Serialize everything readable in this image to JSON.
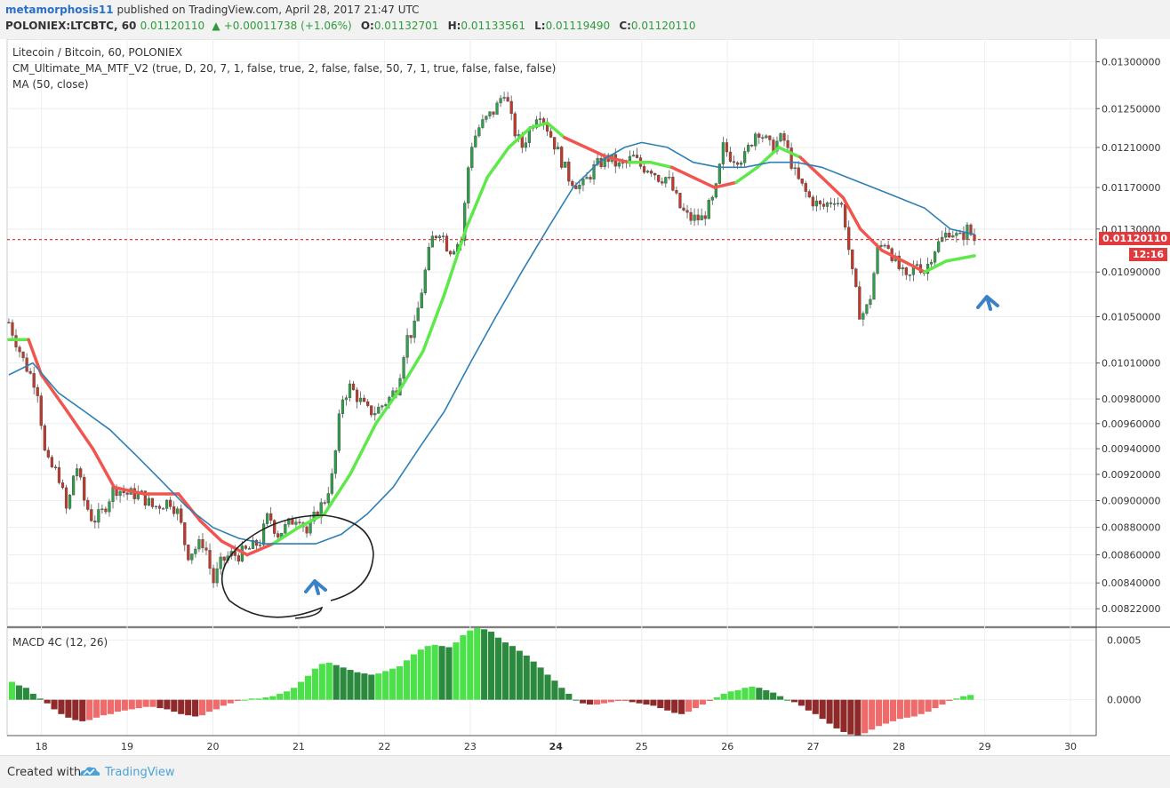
{
  "header": {
    "author": "metamorphosis11",
    "published": "published on TradingView.com, April 28, 2017 21:47 UTC",
    "symbol": "POLONIEX:LTCBTC, 60",
    "last": "0.01120110",
    "change": "+0.00011738 (+1.06%)",
    "o_label": "O:",
    "o": "0.01132701",
    "h_label": "H:",
    "h": "0.01133561",
    "l_label": "L:",
    "l": "0.01119490",
    "c_label": "C:",
    "c": "0.01120110"
  },
  "legend": {
    "title": "Litecoin / Bitcoin, 60, POLONIEX",
    "indicator1": "CM_Ultimate_MA_MTF_V2 (true, D, 20, 7, 1, false, true, 2, false, false, 50, 7, 1, true, false, false, false)",
    "indicator2": "MA (50, close)",
    "macd": "MACD 4C (12, 26)"
  },
  "price_tags": {
    "last_price": "0.01120110",
    "countdown": "12:16"
  },
  "footer": {
    "created_with": "Created with",
    "brand": "TradingView"
  },
  "colors": {
    "ma_up": "#5ee84a",
    "ma_down": "#f0554f",
    "ma50": "#2e7fb3",
    "candle_up": "#2f9e4a",
    "candle_down": "#c0392b",
    "last_line": "#e0393e",
    "annotation_arrow": "#3b82c4",
    "annotation_circle": "#222222"
  },
  "chart_data": [
    {
      "type": "candlestick",
      "title": "Litecoin / Bitcoin, 60, POLONIEX",
      "x_ticks": [
        "18",
        "19",
        "20",
        "21",
        "22",
        "23",
        "24",
        "25",
        "26",
        "27",
        "28",
        "29",
        "30"
      ],
      "x_range_days": [
        17.6,
        30.3
      ],
      "y_ticks": [
        "0.01300000",
        "0.01250000",
        "0.01210000",
        "0.01170000",
        "0.01130000",
        "0.01090000",
        "0.01050000",
        "0.01010000",
        "0.00980000",
        "0.00960000",
        "0.00940000",
        "0.00920000",
        "0.00900000",
        "0.00880000",
        "0.00860000",
        "0.00840000",
        "0.00822000"
      ],
      "y_scale": "log",
      "y_range": [
        0.0081,
        0.01325
      ],
      "last_price": 0.0112011,
      "price_points": [
        [
          17.62,
          0.01045
        ],
        [
          17.8,
          0.0101
        ],
        [
          17.95,
          0.0099
        ],
        [
          18.05,
          0.0093
        ],
        [
          18.2,
          0.0092
        ],
        [
          18.3,
          0.0089
        ],
        [
          18.4,
          0.0093
        ],
        [
          18.5,
          0.009
        ],
        [
          18.6,
          0.00885
        ],
        [
          18.7,
          0.0089
        ],
        [
          18.85,
          0.0091
        ],
        [
          19.0,
          0.00905
        ],
        [
          19.15,
          0.00905
        ],
        [
          19.3,
          0.00895
        ],
        [
          19.5,
          0.009
        ],
        [
          19.6,
          0.0089
        ],
        [
          19.7,
          0.0086
        ],
        [
          19.8,
          0.00865
        ],
        [
          19.9,
          0.0087
        ],
        [
          20.0,
          0.0084
        ],
        [
          20.1,
          0.00855
        ],
        [
          20.2,
          0.0086
        ],
        [
          20.3,
          0.0086
        ],
        [
          20.45,
          0.00865
        ],
        [
          20.55,
          0.0087
        ],
        [
          20.65,
          0.0089
        ],
        [
          20.75,
          0.00875
        ],
        [
          20.85,
          0.0088
        ],
        [
          21.0,
          0.0089
        ],
        [
          21.1,
          0.00875
        ],
        [
          21.2,
          0.0089
        ],
        [
          21.3,
          0.009
        ],
        [
          21.4,
          0.0092
        ],
        [
          21.5,
          0.0098
        ],
        [
          21.6,
          0.0099
        ],
        [
          21.7,
          0.0098
        ],
        [
          21.8,
          0.0097
        ],
        [
          21.9,
          0.0097
        ],
        [
          22.05,
          0.0098
        ],
        [
          22.15,
          0.0099
        ],
        [
          22.25,
          0.0103
        ],
        [
          22.35,
          0.0104
        ],
        [
          22.45,
          0.0108
        ],
        [
          22.55,
          0.0112
        ],
        [
          22.65,
          0.0113
        ],
        [
          22.75,
          0.0111
        ],
        [
          22.9,
          0.0112
        ],
        [
          23.0,
          0.0121
        ],
        [
          23.1,
          0.0123
        ],
        [
          23.2,
          0.0124
        ],
        [
          23.3,
          0.0125
        ],
        [
          23.4,
          0.0127
        ],
        [
          23.5,
          0.0123
        ],
        [
          23.6,
          0.0121
        ],
        [
          23.7,
          0.0123
        ],
        [
          23.8,
          0.0125
        ],
        [
          23.9,
          0.0123
        ],
        [
          24.05,
          0.012
        ],
        [
          24.15,
          0.0118
        ],
        [
          24.3,
          0.0117
        ],
        [
          24.45,
          0.0119
        ],
        [
          24.6,
          0.012
        ],
        [
          24.75,
          0.0119
        ],
        [
          24.9,
          0.012
        ],
        [
          25.0,
          0.0119
        ],
        [
          25.1,
          0.0119
        ],
        [
          25.2,
          0.0118
        ],
        [
          25.3,
          0.0118
        ],
        [
          25.45,
          0.0115
        ],
        [
          25.55,
          0.0114
        ],
        [
          25.7,
          0.0114
        ],
        [
          25.85,
          0.0116
        ],
        [
          25.95,
          0.0121
        ],
        [
          26.05,
          0.012
        ],
        [
          26.2,
          0.012
        ],
        [
          26.35,
          0.0123
        ],
        [
          26.5,
          0.0121
        ],
        [
          26.65,
          0.0122
        ],
        [
          26.8,
          0.0118
        ],
        [
          26.95,
          0.0116
        ],
        [
          27.1,
          0.0115
        ],
        [
          27.25,
          0.0116
        ],
        [
          27.35,
          0.0115
        ],
        [
          27.45,
          0.0109
        ],
        [
          27.55,
          0.0105
        ],
        [
          27.65,
          0.0106
        ],
        [
          27.75,
          0.0111
        ],
        [
          27.85,
          0.0112
        ],
        [
          27.95,
          0.011
        ],
        [
          28.1,
          0.0108
        ],
        [
          28.2,
          0.011
        ],
        [
          28.3,
          0.0109
        ],
        [
          28.4,
          0.0111
        ],
        [
          28.5,
          0.0112
        ],
        [
          28.6,
          0.0113
        ],
        [
          28.7,
          0.0112
        ],
        [
          28.8,
          0.0113
        ],
        [
          28.88,
          0.0112
        ]
      ],
      "series": [
        {
          "role": "ultimate_ma_mtf",
          "points": [
            [
              17.62,
              0.0103
            ],
            [
              17.85,
              0.0103
            ],
            [
              18.0,
              0.01
            ],
            [
              18.3,
              0.0097
            ],
            [
              18.6,
              0.0094
            ],
            [
              18.85,
              0.0091
            ],
            [
              19.2,
              0.00905
            ],
            [
              19.6,
              0.00905
            ],
            [
              19.85,
              0.00885
            ],
            [
              20.1,
              0.0087
            ],
            [
              20.4,
              0.0086
            ],
            [
              20.7,
              0.00868
            ],
            [
              21.0,
              0.0088
            ],
            [
              21.3,
              0.0089
            ],
            [
              21.6,
              0.0092
            ],
            [
              21.9,
              0.0096
            ],
            [
              22.2,
              0.0099
            ],
            [
              22.45,
              0.0102
            ],
            [
              22.7,
              0.0107
            ],
            [
              22.95,
              0.0113
            ],
            [
              23.2,
              0.0118
            ],
            [
              23.45,
              0.0121
            ],
            [
              23.7,
              0.0123
            ],
            [
              23.9,
              0.01235
            ],
            [
              24.1,
              0.0122
            ],
            [
              24.35,
              0.0121
            ],
            [
              24.6,
              0.012
            ],
            [
              24.85,
              0.01195
            ],
            [
              25.1,
              0.01195
            ],
            [
              25.35,
              0.0119
            ],
            [
              25.6,
              0.0118
            ],
            [
              25.85,
              0.0117
            ],
            [
              26.1,
              0.01175
            ],
            [
              26.35,
              0.0119
            ],
            [
              26.6,
              0.0121
            ],
            [
              26.85,
              0.012
            ],
            [
              27.1,
              0.0118
            ],
            [
              27.35,
              0.0116
            ],
            [
              27.55,
              0.0113
            ],
            [
              27.8,
              0.0111
            ],
            [
              28.05,
              0.011
            ],
            [
              28.3,
              0.0109
            ],
            [
              28.55,
              0.011
            ],
            [
              28.88,
              0.01105
            ]
          ],
          "direction": [
            "up",
            "down",
            "down",
            "down",
            "down",
            "down",
            "down",
            "down",
            "down",
            "down",
            "down",
            "up",
            "up",
            "up",
            "up",
            "up",
            "up",
            "up",
            "up",
            "up",
            "up",
            "up",
            "up",
            "up",
            "down",
            "down",
            "down",
            "up",
            "up",
            "down",
            "down",
            "down",
            "up",
            "up",
            "up",
            "down",
            "down",
            "down",
            "down",
            "down",
            "down",
            "up",
            "up",
            "up"
          ]
        },
        {
          "name": "MA (50, close)",
          "points": [
            [
              17.62,
              0.01
            ],
            [
              17.9,
              0.0101
            ],
            [
              18.2,
              0.00985
            ],
            [
              18.5,
              0.0097
            ],
            [
              18.8,
              0.00955
            ],
            [
              19.1,
              0.00935
            ],
            [
              19.4,
              0.00915
            ],
            [
              19.7,
              0.00895
            ],
            [
              20.0,
              0.0088
            ],
            [
              20.3,
              0.00872
            ],
            [
              20.6,
              0.00868
            ],
            [
              20.9,
              0.00868
            ],
            [
              21.2,
              0.00868
            ],
            [
              21.5,
              0.00875
            ],
            [
              21.8,
              0.0089
            ],
            [
              22.1,
              0.0091
            ],
            [
              22.4,
              0.0094
            ],
            [
              22.7,
              0.0097
            ],
            [
              23.0,
              0.0101
            ],
            [
              23.3,
              0.0105
            ],
            [
              23.6,
              0.0109
            ],
            [
              23.9,
              0.0113
            ],
            [
              24.2,
              0.0117
            ],
            [
              24.5,
              0.01195
            ],
            [
              24.8,
              0.0121
            ],
            [
              25.0,
              0.01215
            ],
            [
              25.3,
              0.0121
            ],
            [
              25.6,
              0.01195
            ],
            [
              25.9,
              0.0119
            ],
            [
              26.2,
              0.0119
            ],
            [
              26.5,
              0.01195
            ],
            [
              26.8,
              0.01195
            ],
            [
              27.1,
              0.0119
            ],
            [
              27.4,
              0.0118
            ],
            [
              27.7,
              0.0117
            ],
            [
              28.0,
              0.0116
            ],
            [
              28.3,
              0.0115
            ],
            [
              28.6,
              0.0113
            ],
            [
              28.88,
              0.01125
            ]
          ]
        }
      ]
    },
    {
      "type": "bar",
      "title": "MACD 4C (12, 26)",
      "y_ticks": [
        "0.0005",
        "0.0000"
      ],
      "y_range": [
        -0.0003,
        0.0006
      ],
      "values": [
        0.00015,
        0.00012,
        0.0001,
        5e-05,
        1e-05,
        -3e-05,
        -8e-05,
        -0.00012,
        -0.00015,
        -0.00017,
        -0.00018,
        -0.00017,
        -0.00015,
        -0.00013,
        -0.00012,
        -0.0001,
        -9e-05,
        -8e-05,
        -7e-05,
        -6e-05,
        -6e-05,
        -7e-05,
        -8e-05,
        -0.0001,
        -0.00012,
        -0.00013,
        -0.00014,
        -0.00013,
        -0.0001,
        -8e-05,
        -5e-05,
        -3e-05,
        -1e-05,
        0.0,
        1e-05,
        1e-05,
        2e-05,
        3e-05,
        5e-05,
        7e-05,
        0.0001,
        0.00015,
        0.0002,
        0.00026,
        0.0003,
        0.00031,
        0.00029,
        0.00027,
        0.00025,
        0.00023,
        0.00022,
        0.00021,
        0.00022,
        0.00024,
        0.00026,
        0.00028,
        0.00033,
        0.00038,
        0.00042,
        0.00045,
        0.00046,
        0.00045,
        0.00044,
        0.00048,
        0.00054,
        0.00058,
        0.0006,
        0.00059,
        0.00057,
        0.00052,
        0.00048,
        0.00045,
        0.00041,
        0.00037,
        0.00032,
        0.00027,
        0.00021,
        0.00016,
        0.0001,
        5e-05,
        0.0,
        -3e-05,
        -4e-05,
        -4e-05,
        -3e-05,
        -2e-05,
        -1e-05,
        -1e-05,
        -2e-05,
        -3e-05,
        -4e-05,
        -5e-05,
        -7e-05,
        -9e-05,
        -0.00011,
        -0.00012,
        -0.0001,
        -7e-05,
        -4e-05,
        -1e-05,
        2e-05,
        5e-05,
        7e-05,
        8e-05,
        0.0001,
        0.00011,
        0.0001,
        8e-05,
        6e-05,
        3e-05,
        0.0,
        -2e-05,
        -5e-05,
        -9e-05,
        -0.00012,
        -0.00016,
        -0.0002,
        -0.00024,
        -0.00027,
        -0.00029,
        -0.0003,
        -0.00028,
        -0.00025,
        -0.00022,
        -0.0002,
        -0.00018,
        -0.00016,
        -0.00015,
        -0.00014,
        -0.00012,
        -0.0001,
        -7e-05,
        -4e-05,
        -1e-05,
        1e-05,
        3e-05,
        4e-05
      ],
      "colors_note": "bright green rising-above-zero, dark green falling-above-zero, dark red falling-below-zero, light red rising-below-zero"
    }
  ]
}
